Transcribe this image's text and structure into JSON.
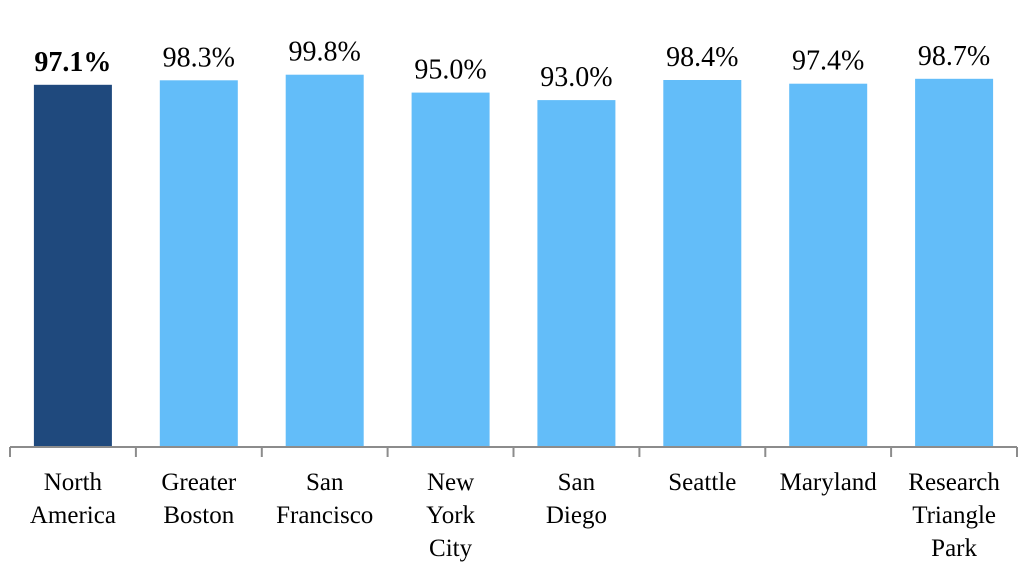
{
  "chart_data": {
    "type": "bar",
    "categories": [
      [
        "North",
        "America"
      ],
      [
        "Greater",
        "Boston"
      ],
      [
        "San",
        "Francisco"
      ],
      [
        "New",
        "York",
        "City"
      ],
      [
        "San",
        "Diego"
      ],
      [
        "Seattle"
      ],
      [
        "Maryland"
      ],
      [
        "Research",
        "Triangle",
        "Park"
      ]
    ],
    "values": [
      97.1,
      98.3,
      99.8,
      95.0,
      93.0,
      98.4,
      97.4,
      98.7
    ],
    "value_labels": [
      "97.1%",
      "98.3%",
      "99.8%",
      "95.0%",
      "93.0%",
      "98.4%",
      "97.4%",
      "98.7%"
    ],
    "bar_colors": [
      "#1f497d",
      "#63bdf9",
      "#63bdf9",
      "#63bdf9",
      "#63bdf9",
      "#63bdf9",
      "#63bdf9",
      "#63bdf9"
    ],
    "bold_value_label_index": 0,
    "axis_color": "#8c8c8c",
    "ylim": [
      0,
      100
    ],
    "title": "",
    "xlabel": "",
    "ylabel": "",
    "grid": false,
    "legend": "none"
  }
}
